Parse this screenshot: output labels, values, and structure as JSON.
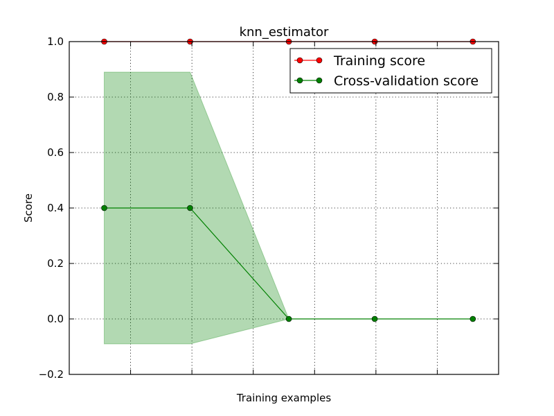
{
  "chart_data": {
    "type": "line",
    "title": "knn_estimator",
    "xlabel": "Training examples",
    "ylabel": "Score",
    "ylim": [
      -0.2,
      1.0
    ],
    "xlim": [
      0,
      7
    ],
    "yticks": [
      -0.2,
      0.0,
      0.2,
      0.4,
      0.6,
      0.8,
      1.0
    ],
    "ytick_labels": [
      "−0.2",
      "0.0",
      "0.2",
      "0.4",
      "0.6",
      "0.8",
      "1.0"
    ],
    "xticks": [
      1,
      2,
      3,
      4,
      5,
      6
    ],
    "xtick_labels": [
      "",
      "",
      "",
      "",
      "",
      ""
    ],
    "grid": true,
    "legend_position": "top-right",
    "x": [
      0.57,
      1.97,
      3.58,
      4.98,
      6.58
    ],
    "series": [
      {
        "name": "Training score",
        "color": "#ff0000",
        "line_color": "#ff0000",
        "values": [
          1.0,
          1.0,
          1.0,
          1.0,
          1.0
        ],
        "band_upper": [
          1.0,
          1.0,
          1.0,
          1.0,
          1.0
        ],
        "band_lower": [
          1.0,
          1.0,
          1.0,
          1.0,
          1.0
        ],
        "band_color": "#ff0000"
      },
      {
        "name": "Cross-validation score",
        "color": "#008000",
        "line_color": "#008000",
        "values": [
          0.4,
          0.4,
          0.0,
          0.0,
          0.0
        ],
        "band_upper": [
          0.89,
          0.89,
          0.0,
          0.0,
          0.0
        ],
        "band_lower": [
          -0.09,
          -0.09,
          0.0,
          0.0,
          0.0
        ],
        "band_color": "#008000"
      }
    ]
  }
}
